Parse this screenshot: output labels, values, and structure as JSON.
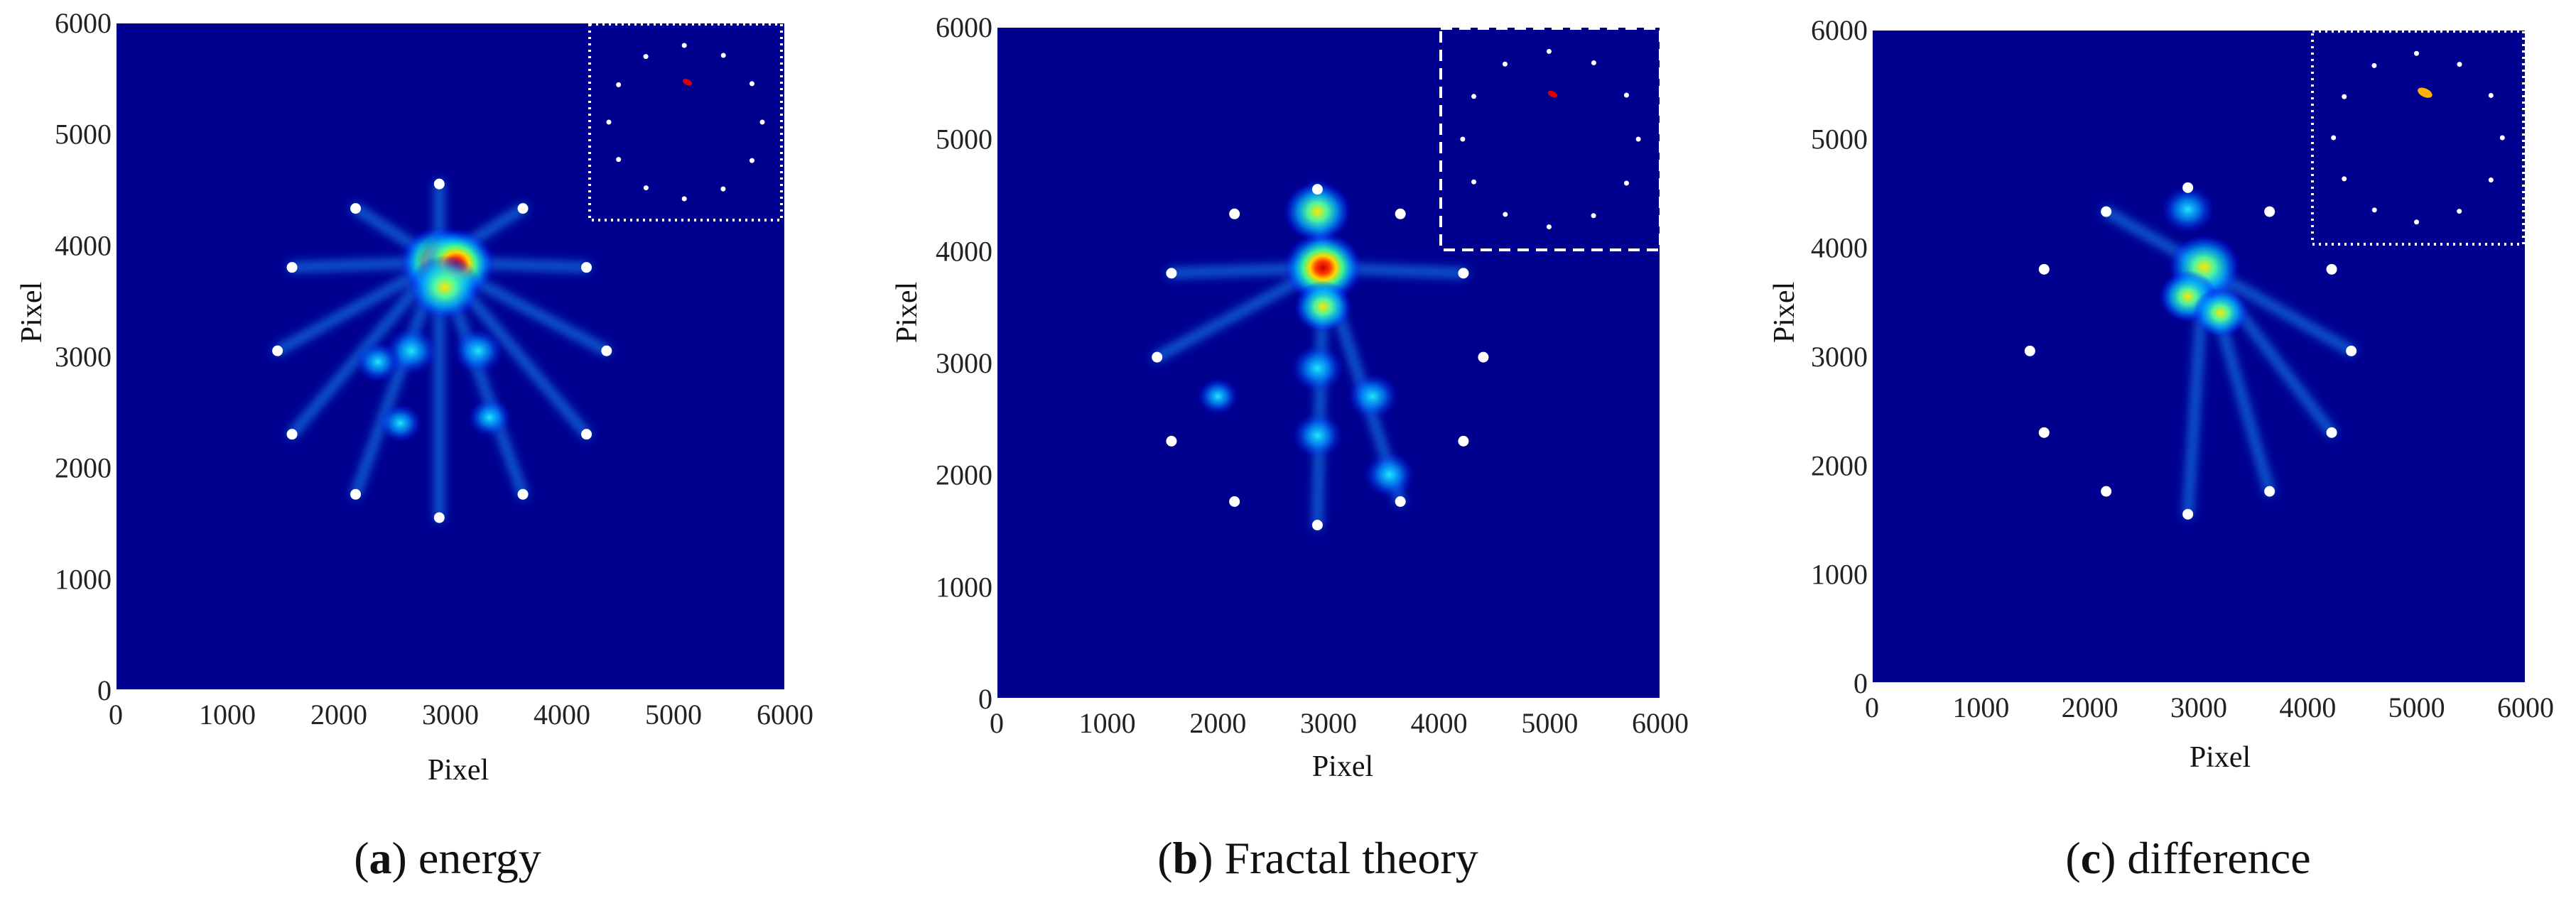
{
  "chart_data": [
    {
      "type": "heatmap",
      "caption": {
        "letter": "a",
        "text": "energy"
      },
      "xlabel": "Pixel",
      "ylabel": "Pixel",
      "xlim": [
        0,
        6000
      ],
      "ylim": [
        0,
        6000
      ],
      "xticks": [
        0,
        1000,
        2000,
        3000,
        4000,
        5000,
        6000
      ],
      "yticks": [
        0,
        1000,
        2000,
        3000,
        4000,
        5000,
        6000
      ],
      "colormap": "jet",
      "background_color": "#00008f",
      "sensors": [
        [
          2900,
          4550
        ],
        [
          3650,
          4330
        ],
        [
          4220,
          3800
        ],
        [
          4400,
          3050
        ],
        [
          4220,
          2300
        ],
        [
          3650,
          1760
        ],
        [
          2900,
          1550
        ],
        [
          2150,
          1760
        ],
        [
          1580,
          2300
        ],
        [
          1450,
          3050
        ],
        [
          1580,
          3800
        ],
        [
          2150,
          4330
        ]
      ],
      "hotspots": [
        [
          2900,
          3850,
          1.0
        ],
        [
          3050,
          3830,
          1.0
        ],
        [
          2950,
          3620,
          0.85
        ],
        [
          2650,
          3050,
          0.45
        ],
        [
          3250,
          3050,
          0.4
        ],
        [
          2350,
          2950,
          0.3
        ],
        [
          3350,
          2450,
          0.25
        ],
        [
          2550,
          2400,
          0.25
        ]
      ],
      "streaks": [
        [
          2150,
          4330
        ],
        [
          3650,
          4330
        ],
        [
          4400,
          3050
        ],
        [
          1450,
          3050
        ],
        [
          4220,
          2300
        ],
        [
          1580,
          2300
        ],
        [
          3650,
          1760
        ],
        [
          2150,
          1760
        ],
        [
          2900,
          1550
        ],
        [
          2900,
          4550
        ],
        [
          1580,
          3800
        ],
        [
          4220,
          3800
        ]
      ],
      "inset": {
        "border": "dotted",
        "source_point": [
          2960,
          3830
        ]
      }
    },
    {
      "type": "heatmap",
      "caption": {
        "letter": "b",
        "text": "Fractal theory"
      },
      "xlabel": "Pixel",
      "ylabel": "Pixel",
      "xlim": [
        0,
        6000
      ],
      "ylim": [
        0,
        6000
      ],
      "xticks": [
        0,
        1000,
        2000,
        3000,
        4000,
        5000,
        6000
      ],
      "yticks": [
        0,
        1000,
        2000,
        3000,
        4000,
        5000,
        6000
      ],
      "colormap": "jet",
      "background_color": "#00008f",
      "sensors": [
        [
          2900,
          4550
        ],
        [
          3650,
          4330
        ],
        [
          4220,
          3800
        ],
        [
          4400,
          3050
        ],
        [
          4220,
          2300
        ],
        [
          3650,
          1760
        ],
        [
          2900,
          1550
        ],
        [
          2150,
          1760
        ],
        [
          1580,
          2300
        ],
        [
          1450,
          3050
        ],
        [
          1580,
          3800
        ],
        [
          2150,
          4330
        ]
      ],
      "hotspots": [
        [
          2950,
          3850,
          1.0
        ],
        [
          2900,
          4350,
          0.75
        ],
        [
          2950,
          3500,
          0.55
        ],
        [
          2900,
          2950,
          0.45
        ],
        [
          2900,
          2350,
          0.4
        ],
        [
          3400,
          2700,
          0.4
        ],
        [
          3550,
          2000,
          0.4
        ],
        [
          2000,
          2700,
          0.2
        ]
      ],
      "streaks": [
        [
          2900,
          1550
        ],
        [
          3650,
          1760
        ],
        [
          1450,
          3050
        ],
        [
          1580,
          3800
        ],
        [
          4220,
          3800
        ],
        [
          2900,
          4550
        ]
      ],
      "inset": {
        "border": "dashed",
        "source_point": [
          2960,
          3820
        ]
      }
    },
    {
      "type": "heatmap",
      "caption": {
        "letter": "c",
        "text": "difference"
      },
      "xlabel": "Pixel",
      "ylabel": "Pixel",
      "xlim": [
        0,
        6000
      ],
      "ylim": [
        0,
        6000
      ],
      "xticks": [
        0,
        1000,
        2000,
        3000,
        4000,
        5000,
        6000
      ],
      "yticks": [
        0,
        1000,
        2000,
        3000,
        4000,
        5000,
        6000
      ],
      "colormap": "jet",
      "background_color": "#00008f",
      "sensors": [
        [
          2900,
          4550
        ],
        [
          3650,
          4330
        ],
        [
          4220,
          3800
        ],
        [
          4400,
          3050
        ],
        [
          4220,
          2300
        ],
        [
          3650,
          1760
        ],
        [
          2900,
          1550
        ],
        [
          2150,
          1760
        ],
        [
          1580,
          2300
        ],
        [
          1450,
          3050
        ],
        [
          1580,
          3800
        ],
        [
          2150,
          4330
        ]
      ],
      "hotspots": [
        [
          3050,
          3820,
          0.85
        ],
        [
          2900,
          3550,
          0.55
        ],
        [
          3200,
          3400,
          0.5
        ],
        [
          2900,
          4350,
          0.45
        ]
      ],
      "streaks": [
        [
          2150,
          4330
        ],
        [
          4400,
          3050
        ],
        [
          2900,
          1550
        ],
        [
          3650,
          1760
        ],
        [
          4220,
          2300
        ]
      ],
      "inset": {
        "border": "dotted",
        "source_point": [
          3050,
          3850
        ]
      }
    }
  ]
}
